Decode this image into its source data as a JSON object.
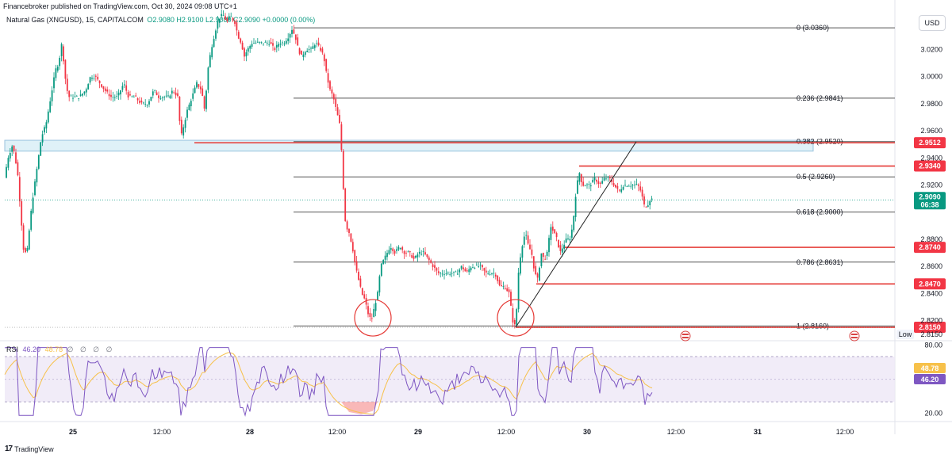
{
  "header": {
    "published": "Financebroker published on TradingView.com, Oct 30, 2024 09:08 UTC+1",
    "instrument": "Natural Gas (XNGUSD), 15, CAPITALCOM",
    "ohlc": "O2.9080 H2.9100 L2.9080 C2.9090 +0.0000 (0.00%)",
    "currency": "USD"
  },
  "rsi_legend": {
    "name": "RSI",
    "value1": "46.20",
    "value2": "48.78",
    "placeholders": "∅ ∅ ∅ ∅"
  },
  "brand": {
    "logo": "17",
    "name": "TradingView"
  },
  "chart_data": {
    "type": "candlestick",
    "title": "Natural Gas (XNGUSD), 15, CAPITALCOM",
    "x_labels": [
      "25",
      "12:00",
      "28",
      "12:00",
      "29",
      "12:00",
      "30",
      "12:00",
      "31",
      "12:00"
    ],
    "price_ticks": [
      "3.0200",
      "3.0000",
      "2.9800",
      "2.9600",
      "2.9400",
      "2.9200",
      "2.8800",
      "2.8600",
      "2.8400",
      "2.8200"
    ],
    "ylim": [
      2.808,
      3.046
    ],
    "path_points": [
      [
        0,
        2.945
      ],
      [
        4,
        2.92
      ],
      [
        10,
        2.94
      ],
      [
        16,
        2.95
      ],
      [
        22,
        2.93
      ],
      [
        26,
        2.9
      ],
      [
        30,
        2.87
      ],
      [
        34,
        2.87
      ],
      [
        40,
        2.905
      ],
      [
        46,
        2.93
      ],
      [
        52,
        2.955
      ],
      [
        58,
        2.965
      ],
      [
        64,
        2.985
      ],
      [
        70,
        3.005
      ],
      [
        74,
        3.01
      ],
      [
        78,
        3.025
      ],
      [
        82,
        3.0
      ],
      [
        86,
        2.985
      ],
      [
        92,
        2.985
      ],
      [
        100,
        2.985
      ],
      [
        108,
        2.99
      ],
      [
        114,
        3.0
      ],
      [
        120,
        3.0
      ],
      [
        126,
        2.995
      ],
      [
        132,
        2.99
      ],
      [
        140,
        2.985
      ],
      [
        148,
        2.985
      ],
      [
        156,
        2.995
      ],
      [
        162,
        2.985
      ],
      [
        170,
        2.985
      ],
      [
        178,
        2.98
      ],
      [
        186,
        2.98
      ],
      [
        194,
        2.99
      ],
      [
        200,
        2.985
      ],
      [
        206,
        2.985
      ],
      [
        212,
        2.985
      ],
      [
        218,
        2.99
      ],
      [
        224,
        2.985
      ],
      [
        228,
        2.955
      ],
      [
        232,
        2.965
      ],
      [
        236,
        2.975
      ],
      [
        242,
        2.985
      ],
      [
        248,
        2.995
      ],
      [
        254,
        2.99
      ],
      [
        258,
        2.975
      ],
      [
        262,
        3.005
      ],
      [
        266,
        3.02
      ],
      [
        270,
        3.03
      ],
      [
        274,
        3.04
      ],
      [
        278,
        3.045
      ],
      [
        282,
        3.045
      ],
      [
        286,
        3.04
      ],
      [
        290,
        3.045
      ],
      [
        296,
        3.04
      ],
      [
        300,
        3.03
      ],
      [
        304,
        3.025
      ],
      [
        308,
        3.015
      ],
      [
        312,
        3.02
      ],
      [
        318,
        3.025
      ],
      [
        326,
        3.025
      ],
      [
        334,
        3.025
      ],
      [
        340,
        3.025
      ],
      [
        346,
        3.02
      ],
      [
        352,
        3.025
      ],
      [
        358,
        3.025
      ],
      [
        364,
        3.03
      ],
      [
        368,
        3.035
      ],
      [
        372,
        3.03
      ],
      [
        376,
        3.02
      ],
      [
        380,
        3.015
      ],
      [
        386,
        3.02
      ],
      [
        392,
        3.02
      ],
      [
        398,
        3.025
      ],
      [
        404,
        3.02
      ],
      [
        408,
        3.015
      ],
      [
        412,
        3.0
      ],
      [
        416,
        2.99
      ],
      [
        420,
        2.985
      ],
      [
        424,
        2.975
      ],
      [
        428,
        2.965
      ],
      [
        430,
        2.95
      ],
      [
        432,
        2.93
      ],
      [
        434,
        2.9
      ],
      [
        436,
        2.89
      ],
      [
        440,
        2.885
      ],
      [
        444,
        2.875
      ],
      [
        448,
        2.86
      ],
      [
        452,
        2.85
      ],
      [
        456,
        2.84
      ],
      [
        460,
        2.835
      ],
      [
        464,
        2.825
      ],
      [
        468,
        2.82
      ],
      [
        472,
        2.83
      ],
      [
        476,
        2.84
      ],
      [
        480,
        2.86
      ],
      [
        484,
        2.865
      ],
      [
        488,
        2.87
      ],
      [
        492,
        2.875
      ],
      [
        498,
        2.87
      ],
      [
        504,
        2.875
      ],
      [
        510,
        2.87
      ],
      [
        516,
        2.87
      ],
      [
        522,
        2.865
      ],
      [
        528,
        2.87
      ],
      [
        534,
        2.87
      ],
      [
        540,
        2.865
      ],
      [
        546,
        2.86
      ],
      [
        552,
        2.855
      ],
      [
        558,
        2.855
      ],
      [
        564,
        2.855
      ],
      [
        570,
        2.855
      ],
      [
        576,
        2.855
      ],
      [
        582,
        2.86
      ],
      [
        588,
        2.855
      ],
      [
        594,
        2.86
      ],
      [
        600,
        2.86
      ],
      [
        606,
        2.86
      ],
      [
        612,
        2.855
      ],
      [
        618,
        2.855
      ],
      [
        624,
        2.855
      ],
      [
        630,
        2.845
      ],
      [
        636,
        2.845
      ],
      [
        642,
        2.84
      ],
      [
        646,
        2.82
      ],
      [
        650,
        2.815
      ],
      [
        654,
        2.86
      ],
      [
        658,
        2.875
      ],
      [
        662,
        2.885
      ],
      [
        666,
        2.875
      ],
      [
        670,
        2.87
      ],
      [
        674,
        2.855
      ],
      [
        678,
        2.85
      ],
      [
        682,
        2.87
      ],
      [
        686,
        2.865
      ],
      [
        690,
        2.87
      ],
      [
        694,
        2.89
      ],
      [
        698,
        2.885
      ],
      [
        702,
        2.88
      ],
      [
        706,
        2.87
      ],
      [
        710,
        2.875
      ],
      [
        714,
        2.88
      ],
      [
        718,
        2.88
      ],
      [
        722,
        2.89
      ],
      [
        726,
        2.915
      ],
      [
        730,
        2.93
      ],
      [
        734,
        2.92
      ],
      [
        738,
        2.92
      ],
      [
        744,
        2.92
      ],
      [
        750,
        2.925
      ],
      [
        756,
        2.92
      ],
      [
        762,
        2.925
      ],
      [
        768,
        2.925
      ],
      [
        774,
        2.92
      ],
      [
        780,
        2.915
      ],
      [
        786,
        2.92
      ],
      [
        792,
        2.92
      ],
      [
        798,
        2.92
      ],
      [
        804,
        2.92
      ],
      [
        808,
        2.915
      ],
      [
        812,
        2.905
      ],
      [
        816,
        2.905
      ],
      [
        820,
        2.91
      ],
      [
        824,
        2.909
      ]
    ],
    "fibonacci": [
      {
        "label": "0 (3.0360)",
        "value": 3.036
      },
      {
        "label": "0.236 (2.9841)",
        "value": 2.9841
      },
      {
        "label": "0.382 (2.9520)",
        "value": 2.952
      },
      {
        "label": "0.5 (2.9260)",
        "value": 2.926
      },
      {
        "label": "0.618 (2.9000)",
        "value": 2.9
      },
      {
        "label": "0.786 (2.8631)",
        "value": 2.8631
      },
      {
        "label": "1 (2.8160)",
        "value": 2.816
      }
    ],
    "horizontal_levels": [
      {
        "label": "2.9512",
        "value": 2.9512
      },
      {
        "label": "2.9340",
        "value": 2.934
      },
      {
        "label": "2.8740",
        "value": 2.874
      },
      {
        "label": "2.8470",
        "value": 2.847
      },
      {
        "label": "2.8150",
        "value": 2.815
      }
    ],
    "support_zone": [
      2.945,
      2.953
    ],
    "trendline": [
      [
        650,
        2.815
      ],
      [
        802,
        2.952
      ]
    ],
    "current_price": {
      "label": "2.9090",
      "countdown": "06:38",
      "value": 2.909
    },
    "low_marker": {
      "label": "Low",
      "value": "2.8150"
    },
    "circles": [
      {
        "x": 470,
        "price": 2.822
      },
      {
        "x": 650,
        "price": 2.822
      }
    ],
    "rsi": {
      "ticks": [
        "80.00",
        "20.00"
      ],
      "labels": [
        {
          "text": "48.78",
          "color": "#f7c14a"
        },
        {
          "text": "46.20",
          "color": "#7e57c2"
        }
      ],
      "ylim": [
        14,
        84
      ],
      "band": [
        30,
        70
      ],
      "mid": 50
    }
  }
}
